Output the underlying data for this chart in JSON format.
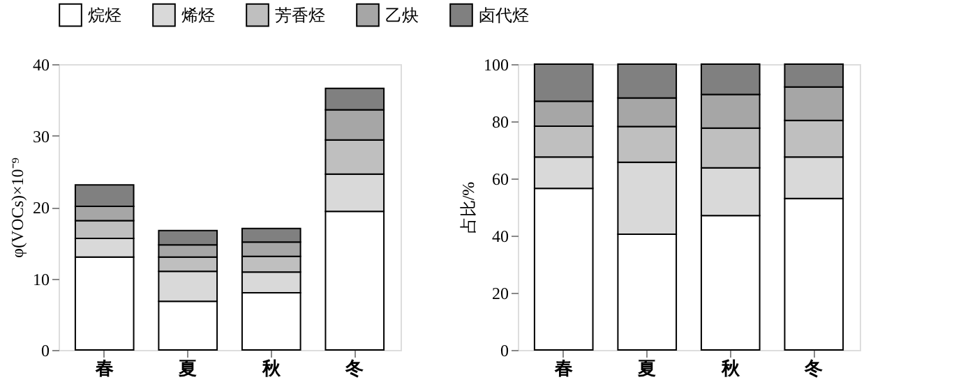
{
  "chart_data": [
    {
      "type": "bar",
      "stacked": true,
      "ylabel": "φ(VOCs)×10⁻⁹",
      "categories": [
        "春",
        "夏",
        "秋",
        "冬"
      ],
      "ylim": [
        0,
        40
      ],
      "yticks": [
        0,
        10,
        20,
        30,
        40
      ],
      "grid": false,
      "legend": "top",
      "series": [
        {
          "name": "烷烃",
          "color": "#ffffff",
          "values": [
            13.0,
            6.8,
            8.0,
            19.4
          ]
        },
        {
          "name": "烯烃",
          "color": "#d9d9d9",
          "values": [
            2.6,
            4.2,
            2.9,
            5.2
          ]
        },
        {
          "name": "芳香烃",
          "color": "#bfbfbf",
          "values": [
            2.5,
            2.0,
            2.2,
            4.8
          ]
        },
        {
          "name": "乙炔",
          "color": "#a6a6a6",
          "values": [
            2.0,
            1.7,
            2.0,
            4.2
          ]
        },
        {
          "name": "卤代烃",
          "color": "#808080",
          "values": [
            3.0,
            2.0,
            1.9,
            3.0
          ]
        }
      ]
    },
    {
      "type": "bar",
      "stacked": true,
      "ylabel": "占比/%",
      "categories": [
        "春",
        "夏",
        "秋",
        "冬"
      ],
      "ylim": [
        0,
        100
      ],
      "yticks": [
        0,
        20,
        40,
        60,
        80,
        100
      ],
      "grid": false,
      "legend": "top",
      "series": [
        {
          "name": "烷烃",
          "color": "#ffffff",
          "values": [
            56.5,
            40.5,
            47.0,
            53.0
          ]
        },
        {
          "name": "烯烃",
          "color": "#d9d9d9",
          "values": [
            11.0,
            25.2,
            16.7,
            14.5
          ]
        },
        {
          "name": "芳香烃",
          "color": "#bfbfbf",
          "values": [
            10.8,
            12.5,
            13.9,
            12.8
          ]
        },
        {
          "name": "乙炔",
          "color": "#a6a6a6",
          "values": [
            8.7,
            10.0,
            11.8,
            11.7
          ]
        },
        {
          "name": "卤代烃",
          "color": "#808080",
          "values": [
            13.0,
            11.8,
            10.6,
            8.0
          ]
        }
      ]
    }
  ]
}
